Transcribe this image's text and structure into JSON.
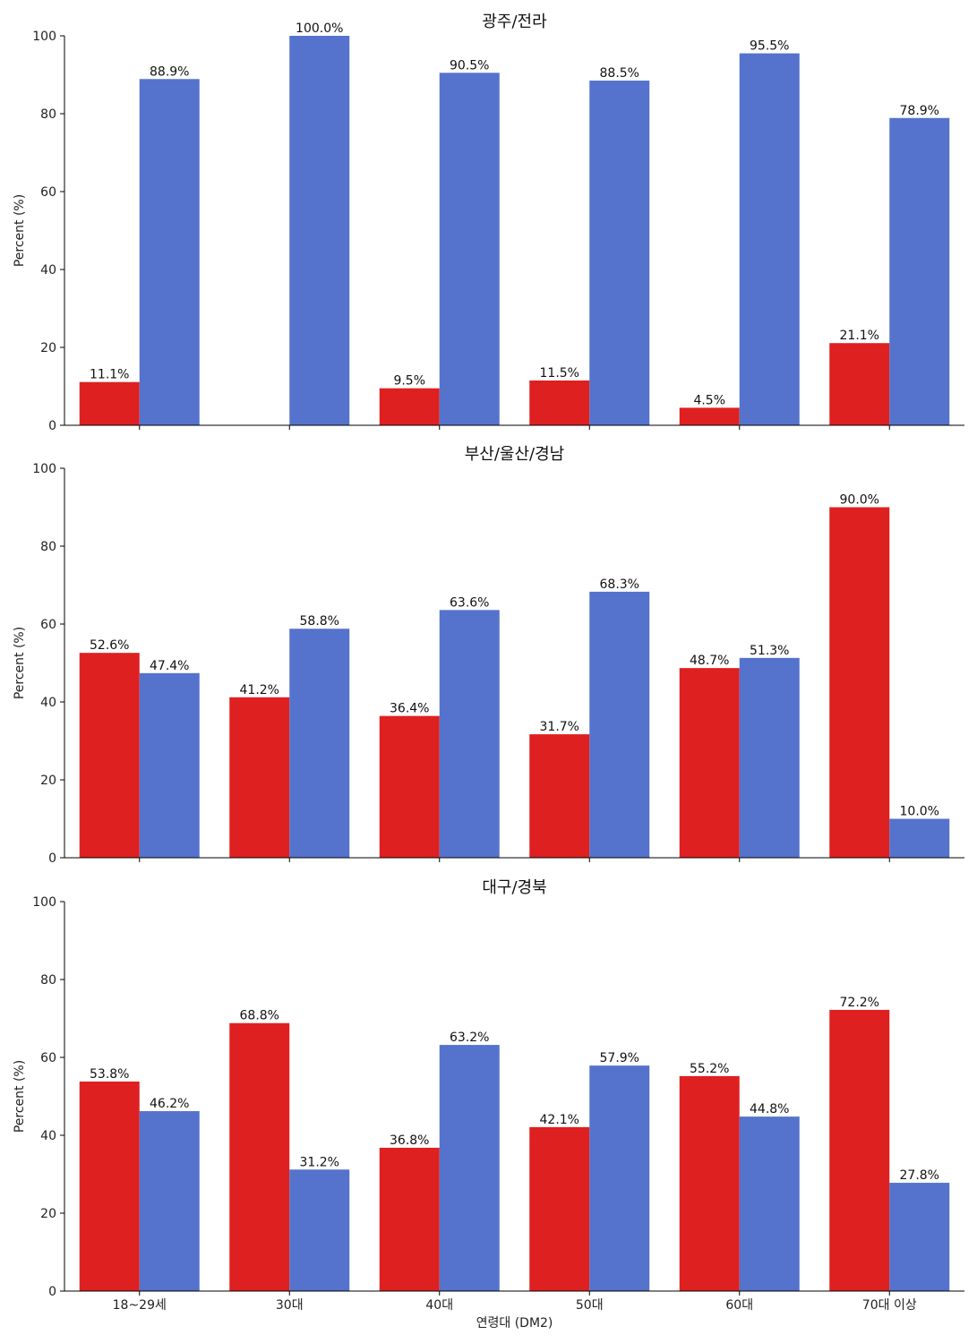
{
  "chart_data": [
    {
      "type": "bar",
      "title": "광주/전라",
      "categories": [
        "18~29세",
        "30대",
        "40대",
        "50대",
        "60대",
        "70대 이상"
      ],
      "ylabel": "Percent (%)",
      "xlabel": "",
      "ylim": [
        0,
        100
      ],
      "yticks": [
        "0",
        "20",
        "40",
        "60",
        "80",
        "100"
      ],
      "series": [
        {
          "values": [
            11.1,
            0,
            9.5,
            11.5,
            4.5,
            21.1
          ],
          "labels": [
            "11.1%",
            "",
            "9.5%",
            "11.5%",
            "4.5%",
            "21.1%"
          ],
          "color": "#de2020"
        },
        {
          "values": [
            88.9,
            100.0,
            90.5,
            88.5,
            95.5,
            78.9
          ],
          "labels": [
            "88.9%",
            "100.0%",
            "90.5%",
            "88.5%",
            "95.5%",
            "78.9%"
          ],
          "color": "#5573cc"
        }
      ],
      "grid": false,
      "show_xtick_labels": false
    },
    {
      "type": "bar",
      "title": "부산/울산/경남",
      "categories": [
        "18~29세",
        "30대",
        "40대",
        "50대",
        "60대",
        "70대 이상"
      ],
      "ylabel": "Percent (%)",
      "xlabel": "",
      "ylim": [
        0,
        100
      ],
      "yticks": [
        "0",
        "20",
        "40",
        "60",
        "80",
        "100"
      ],
      "series": [
        {
          "values": [
            52.6,
            41.2,
            36.4,
            31.7,
            48.7,
            90.0
          ],
          "labels": [
            "52.6%",
            "41.2%",
            "36.4%",
            "31.7%",
            "48.7%",
            "90.0%"
          ],
          "color": "#de2020"
        },
        {
          "values": [
            47.4,
            58.8,
            63.6,
            68.3,
            51.3,
            10.0
          ],
          "labels": [
            "47.4%",
            "58.8%",
            "63.6%",
            "68.3%",
            "51.3%",
            "10.0%"
          ],
          "color": "#5573cc"
        }
      ],
      "grid": false,
      "show_xtick_labels": false
    },
    {
      "type": "bar",
      "title": "대구/경북",
      "categories": [
        "18~29세",
        "30대",
        "40대",
        "50대",
        "60대",
        "70대 이상"
      ],
      "ylabel": "Percent (%)",
      "xlabel": "연령대 (DM2)",
      "ylim": [
        0,
        100
      ],
      "yticks": [
        "0",
        "20",
        "40",
        "60",
        "80",
        "100"
      ],
      "series": [
        {
          "values": [
            53.8,
            68.8,
            36.8,
            42.1,
            55.2,
            72.2
          ],
          "labels": [
            "53.8%",
            "68.8%",
            "36.8%",
            "42.1%",
            "55.2%",
            "72.2%"
          ],
          "color": "#de2020"
        },
        {
          "values": [
            46.2,
            31.2,
            63.2,
            57.9,
            44.8,
            27.8
          ],
          "labels": [
            "46.2%",
            "31.2%",
            "63.2%",
            "57.9%",
            "44.8%",
            "27.8%"
          ],
          "color": "#5573cc"
        }
      ],
      "grid": false,
      "show_xtick_labels": true
    }
  ]
}
